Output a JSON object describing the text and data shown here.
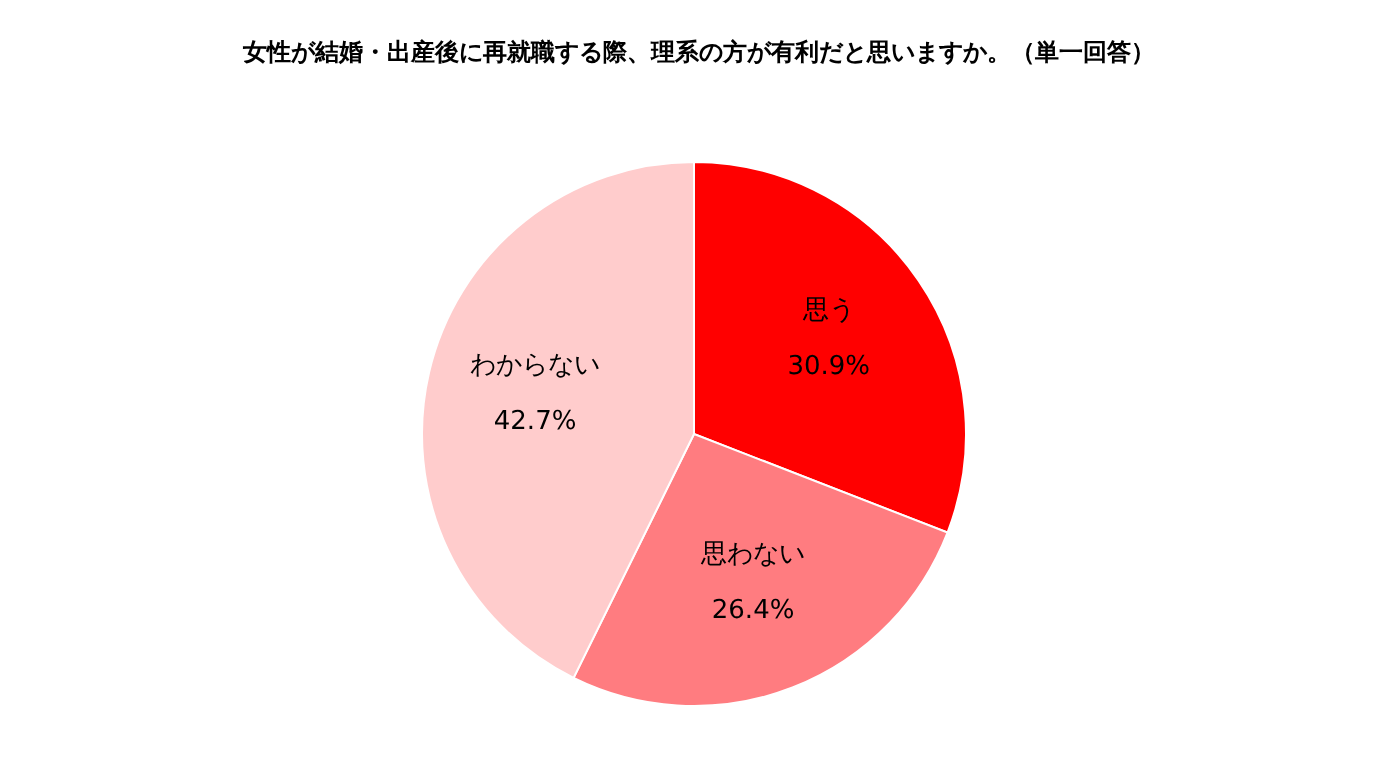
{
  "chart_data": {
    "type": "pie",
    "title": "女性が結婚・出産後に再就職する際、理系の方が有利だと思いますか。（単一回答）",
    "categories": [
      "思う",
      "思わない",
      "わからない"
    ],
    "values": [
      30.9,
      26.4,
      42.7
    ],
    "colors": [
      "#ff0000",
      "#ff7c80",
      "#ffcccc"
    ],
    "value_labels": [
      "30.9%",
      "26.4%",
      "42.7%"
    ],
    "legend": false
  }
}
